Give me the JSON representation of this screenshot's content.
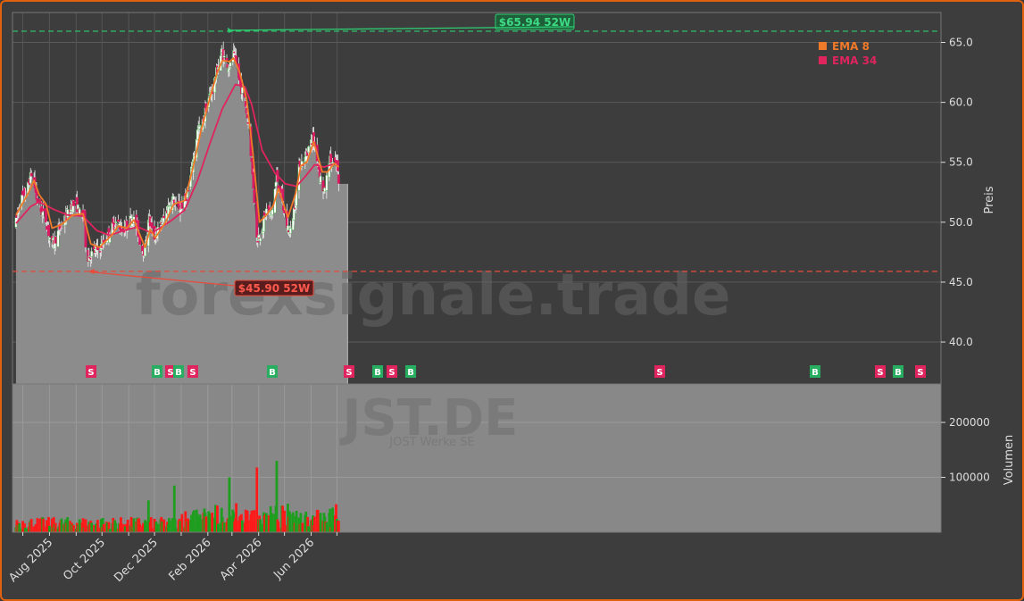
{
  "chart_data": [
    {
      "type": "candlestick",
      "panel": "price",
      "ylabel": "Preis",
      "ylim": [
        36.5,
        67.5
      ],
      "yticks": [
        "40.0",
        "45.0",
        "50.0",
        "55.0",
        "60.0",
        "65.0"
      ],
      "xticks": [
        "Aug 2025",
        "Oct 2025",
        "Dec 2025",
        "Feb 2026",
        "Apr 2026",
        "Jun 2026"
      ],
      "grid": true,
      "legend_position": "top-right",
      "series": [
        {
          "name": "EMA 8",
          "color": "#f07a2a"
        },
        {
          "name": "EMA 34",
          "color": "#e0245e"
        }
      ],
      "close_path": [
        {
          "d": "2025-06-23",
          "v": 50.0
        },
        {
          "d": "2025-06-28",
          "v": 51.8
        },
        {
          "d": "2025-07-05",
          "v": 52.5
        },
        {
          "d": "2025-07-12",
          "v": 54.3
        },
        {
          "d": "2025-07-17",
          "v": 52.0
        },
        {
          "d": "2025-07-22",
          "v": 51.0
        },
        {
          "d": "2025-07-28",
          "v": 50.2
        },
        {
          "d": "2025-08-03",
          "v": 48.0
        },
        {
          "d": "2025-08-09",
          "v": 48.8
        },
        {
          "d": "2025-08-15",
          "v": 49.8
        },
        {
          "d": "2025-08-21",
          "v": 50.5
        },
        {
          "d": "2025-08-27",
          "v": 51.5
        },
        {
          "d": "2025-09-02",
          "v": 51.3
        },
        {
          "d": "2025-09-07",
          "v": 50.3
        },
        {
          "d": "2025-09-10",
          "v": 50.8
        },
        {
          "d": "2025-09-13",
          "v": 47.0
        },
        {
          "d": "2025-09-20",
          "v": 47.4
        },
        {
          "d": "2025-09-28",
          "v": 47.8
        },
        {
          "d": "2025-10-06",
          "v": 48.6
        },
        {
          "d": "2025-10-12",
          "v": 49.5
        },
        {
          "d": "2025-10-18",
          "v": 50.1
        },
        {
          "d": "2025-10-24",
          "v": 49.4
        },
        {
          "d": "2025-10-30",
          "v": 49.6
        },
        {
          "d": "2025-11-05",
          "v": 50.5
        },
        {
          "d": "2025-11-11",
          "v": 49.5
        },
        {
          "d": "2025-11-16",
          "v": 47.8
        },
        {
          "d": "2025-11-20",
          "v": 47.6
        },
        {
          "d": "2025-11-23",
          "v": 50.8
        },
        {
          "d": "2025-11-30",
          "v": 48.6
        },
        {
          "d": "2025-12-07",
          "v": 49.6
        },
        {
          "d": "2025-12-14",
          "v": 50.6
        },
        {
          "d": "2025-12-21",
          "v": 52.2
        },
        {
          "d": "2025-12-28",
          "v": 51.0
        },
        {
          "d": "2026-01-04",
          "v": 51.6
        },
        {
          "d": "2026-01-10",
          "v": 52.8
        },
        {
          "d": "2026-01-15",
          "v": 55.2
        },
        {
          "d": "2026-01-20",
          "v": 57.6
        },
        {
          "d": "2026-01-26",
          "v": 58.3
        },
        {
          "d": "2026-02-01",
          "v": 60.2
        },
        {
          "d": "2026-02-07",
          "v": 61.2
        },
        {
          "d": "2026-02-12",
          "v": 62.8
        },
        {
          "d": "2026-02-17",
          "v": 64.2
        },
        {
          "d": "2026-02-22",
          "v": 63.4
        },
        {
          "d": "2026-02-27",
          "v": 63.0
        },
        {
          "d": "2026-03-03",
          "v": 64.0
        },
        {
          "d": "2026-03-07",
          "v": 62.8
        },
        {
          "d": "2026-03-11",
          "v": 61.4
        },
        {
          "d": "2026-03-16",
          "v": 60.2
        },
        {
          "d": "2026-03-21",
          "v": 57.8
        },
        {
          "d": "2026-03-26",
          "v": 53.0
        },
        {
          "d": "2026-03-30",
          "v": 48.6
        },
        {
          "d": "2026-04-04",
          "v": 49.2
        },
        {
          "d": "2026-04-10",
          "v": 51.0
        },
        {
          "d": "2026-04-16",
          "v": 50.6
        },
        {
          "d": "2026-04-22",
          "v": 53.8
        },
        {
          "d": "2026-04-28",
          "v": 52.0
        },
        {
          "d": "2026-05-03",
          "v": 49.8
        },
        {
          "d": "2026-05-08",
          "v": 49.2
        },
        {
          "d": "2026-05-14",
          "v": 52.0
        },
        {
          "d": "2026-05-19",
          "v": 55.0
        },
        {
          "d": "2026-05-24",
          "v": 55.0
        },
        {
          "d": "2026-05-29",
          "v": 56.2
        },
        {
          "d": "2026-06-03",
          "v": 57.0
        },
        {
          "d": "2026-06-08",
          "v": 55.4
        },
        {
          "d": "2026-06-13",
          "v": 53.2
        },
        {
          "d": "2026-06-17",
          "v": 52.5
        },
        {
          "d": "2026-06-22",
          "v": 55.3
        },
        {
          "d": "2026-06-27",
          "v": 54.7
        },
        {
          "d": "2026-07-01",
          "v": 54.8
        },
        {
          "d": "2026-07-04",
          "v": 52.4
        }
      ],
      "ema8_path": [
        {
          "d": "2025-06-23",
          "v": 50.6
        },
        {
          "d": "2025-07-08",
          "v": 52.5
        },
        {
          "d": "2025-07-14",
          "v": 53.5
        },
        {
          "d": "2025-07-20",
          "v": 52.3
        },
        {
          "d": "2025-07-28",
          "v": 51.5
        },
        {
          "d": "2025-08-04",
          "v": 49.5
        },
        {
          "d": "2025-08-15",
          "v": 49.8
        },
        {
          "d": "2025-08-28",
          "v": 50.6
        },
        {
          "d": "2025-09-09",
          "v": 50.7
        },
        {
          "d": "2025-09-18",
          "v": 48.2
        },
        {
          "d": "2025-09-28",
          "v": 47.9
        },
        {
          "d": "2025-10-12",
          "v": 48.9
        },
        {
          "d": "2025-10-20",
          "v": 49.7
        },
        {
          "d": "2025-10-30",
          "v": 49.5
        },
        {
          "d": "2025-11-07",
          "v": 50.2
        },
        {
          "d": "2025-11-20",
          "v": 47.9
        },
        {
          "d": "2025-11-26",
          "v": 49.4
        },
        {
          "d": "2025-12-02",
          "v": 48.7
        },
        {
          "d": "2025-12-14",
          "v": 50.0
        },
        {
          "d": "2025-12-23",
          "v": 51.5
        },
        {
          "d": "2026-01-05",
          "v": 51.8
        },
        {
          "d": "2026-01-15",
          "v": 54.6
        },
        {
          "d": "2026-01-24",
          "v": 57.6
        },
        {
          "d": "2026-02-03",
          "v": 60.3
        },
        {
          "d": "2026-02-12",
          "v": 62.5
        },
        {
          "d": "2026-02-18",
          "v": 63.5
        },
        {
          "d": "2026-02-26",
          "v": 63.4
        },
        {
          "d": "2026-03-03",
          "v": 63.7
        },
        {
          "d": "2026-03-10",
          "v": 62.5
        },
        {
          "d": "2026-03-18",
          "v": 60.3
        },
        {
          "d": "2026-03-25",
          "v": 56.0
        },
        {
          "d": "2026-04-02",
          "v": 50.0
        },
        {
          "d": "2026-04-10",
          "v": 50.6
        },
        {
          "d": "2026-04-18",
          "v": 51.4
        },
        {
          "d": "2026-04-24",
          "v": 52.8
        },
        {
          "d": "2026-05-05",
          "v": 50.4
        },
        {
          "d": "2026-05-14",
          "v": 52.4
        },
        {
          "d": "2026-05-20",
          "v": 54.7
        },
        {
          "d": "2026-05-27",
          "v": 55.0
        },
        {
          "d": "2026-06-04",
          "v": 56.7
        },
        {
          "d": "2026-06-14",
          "v": 54.2
        },
        {
          "d": "2026-06-20",
          "v": 54.2
        },
        {
          "d": "2026-06-28",
          "v": 54.9
        },
        {
          "d": "2026-07-03",
          "v": 54.6
        }
      ],
      "ema34_path": [
        {
          "d": "2025-06-23",
          "v": 49.9
        },
        {
          "d": "2025-07-10",
          "v": 51.3
        },
        {
          "d": "2025-07-20",
          "v": 51.7
        },
        {
          "d": "2025-08-05",
          "v": 51.1
        },
        {
          "d": "2025-08-22",
          "v": 50.6
        },
        {
          "d": "2025-09-09",
          "v": 50.5
        },
        {
          "d": "2025-09-25",
          "v": 49.3
        },
        {
          "d": "2025-10-10",
          "v": 48.9
        },
        {
          "d": "2025-10-30",
          "v": 49.4
        },
        {
          "d": "2025-11-12",
          "v": 49.6
        },
        {
          "d": "2025-11-28",
          "v": 49.1
        },
        {
          "d": "2025-12-18",
          "v": 50.0
        },
        {
          "d": "2026-01-05",
          "v": 51.0
        },
        {
          "d": "2026-01-20",
          "v": 53.5
        },
        {
          "d": "2026-02-03",
          "v": 56.5
        },
        {
          "d": "2026-02-18",
          "v": 59.5
        },
        {
          "d": "2026-03-05",
          "v": 61.5
        },
        {
          "d": "2026-03-16",
          "v": 61.3
        },
        {
          "d": "2026-03-24",
          "v": 59.8
        },
        {
          "d": "2026-04-05",
          "v": 56.0
        },
        {
          "d": "2026-04-20",
          "v": 54.1
        },
        {
          "d": "2026-05-02",
          "v": 53.2
        },
        {
          "d": "2026-05-15",
          "v": 53.0
        },
        {
          "d": "2026-05-25",
          "v": 53.8
        },
        {
          "d": "2026-06-05",
          "v": 54.8
        },
        {
          "d": "2026-06-16",
          "v": 54.6
        },
        {
          "d": "2026-07-03",
          "v": 55.0
        }
      ],
      "annotations": [
        {
          "text": "$65.94 52W",
          "value": 65.94,
          "date": "2026-03-02",
          "color": "#2ecc71"
        },
        {
          "text": "$45.90 52W",
          "value": 45.9,
          "date": "2025-09-14",
          "color": "#e74c3c"
        }
      ],
      "signals": [
        {
          "label": "S",
          "date": "2025-07-26",
          "color": "#e0245e"
        },
        {
          "label": "B",
          "date": "2025-08-28",
          "color": "#27ae60"
        },
        {
          "label": "S",
          "date": "2025-09-03",
          "color": "#e0245e"
        },
        {
          "label": "B",
          "date": "2025-09-05",
          "color": "#27ae60"
        },
        {
          "label": "S",
          "date": "2025-09-12",
          "color": "#e0245e"
        },
        {
          "label": "B",
          "date": "2025-10-17",
          "color": "#27ae60"
        },
        {
          "label": "S",
          "date": "2025-11-24",
          "color": "#e0245e"
        },
        {
          "label": "B",
          "date": "2025-12-03",
          "color": "#27ae60"
        },
        {
          "label": "S",
          "date": "2025-12-10",
          "color": "#e0245e"
        },
        {
          "label": "B",
          "date": "2025-12-18",
          "color": "#27ae60"
        },
        {
          "label": "S",
          "date": "2026-04-24",
          "color": "#e0245e"
        },
        {
          "label": "B",
          "date": "2026-07-31",
          "color": "#27ae60"
        },
        {
          "label": "S",
          "date": "2026-09-01",
          "color": "#e0245e"
        },
        {
          "label": "B",
          "date": "2026-09-10",
          "color": "#27ae60"
        },
        {
          "label": "S",
          "date": "2026-09-21",
          "color": "#e0245e"
        }
      ]
    },
    {
      "type": "bar",
      "panel": "volume",
      "ylabel": "Volumen",
      "ylim": [
        0,
        270000
      ],
      "yticks": [
        "100000",
        "200000"
      ],
      "up_color": "#1e9e1e",
      "down_color": "#ff1a1a",
      "spikes": [
        {
          "d": "2025-09-13",
          "v": 260000,
          "up": false
        },
        {
          "d": "2025-12-21",
          "v": 135000,
          "up": true
        },
        {
          "d": "2025-12-24",
          "v": 85000,
          "up": true
        },
        {
          "d": "2025-11-24",
          "v": 58000,
          "up": true
        },
        {
          "d": "2026-02-22",
          "v": 122000,
          "up": true
        },
        {
          "d": "2026-02-26",
          "v": 100000,
          "up": true
        },
        {
          "d": "2026-03-30",
          "v": 118000,
          "up": false
        },
        {
          "d": "2026-04-22",
          "v": 130000,
          "up": true
        },
        {
          "d": "2026-05-24",
          "v": 75000,
          "up": true
        }
      ]
    }
  ],
  "watermark": {
    "main": "forexsignale.trade",
    "ticker": "JST.DE",
    "company": "JOST Werke SE"
  }
}
